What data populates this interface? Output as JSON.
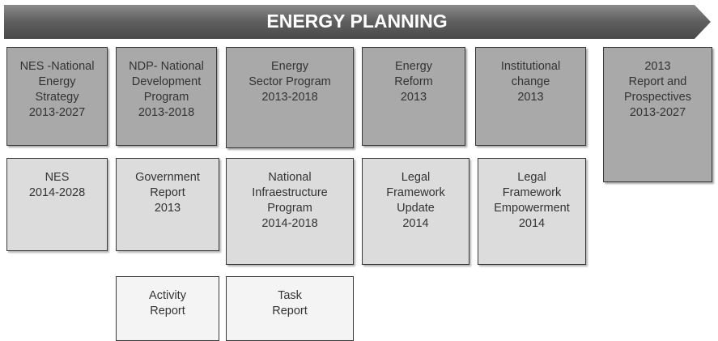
{
  "header": {
    "title": "ENERGY PLANNING"
  },
  "boxes": [
    {
      "lines": [
        "NES -National",
        "Energy",
        "Strategy",
        "2013-2027"
      ]
    },
    {
      "lines": [
        "NDP- National",
        "Development",
        "Program",
        "2013-2018"
      ]
    },
    {
      "lines": [
        "Energy",
        "Sector Program",
        "2013-2018"
      ]
    },
    {
      "lines": [
        "Energy",
        "Reform",
        "2013"
      ]
    },
    {
      "lines": [
        "Institutional",
        "change",
        "2013"
      ]
    },
    {
      "lines": [
        "2013",
        "Report and",
        "Prospectives",
        "2013-2027"
      ]
    },
    {
      "lines": [
        "NES",
        "2014-2028"
      ]
    },
    {
      "lines": [
        "Government",
        "Report",
        "2013"
      ]
    },
    {
      "lines": [
        "National",
        "Infraestructure",
        "Program",
        "2014-2018"
      ]
    },
    {
      "lines": [
        "Legal",
        "Framework",
        "Update",
        "2014"
      ]
    },
    {
      "lines": [
        "Legal",
        "Framework",
        "Empowerment",
        "2014"
      ]
    },
    {
      "lines": [
        "Activity",
        "Report"
      ]
    },
    {
      "lines": [
        "Task",
        "Report"
      ]
    }
  ]
}
